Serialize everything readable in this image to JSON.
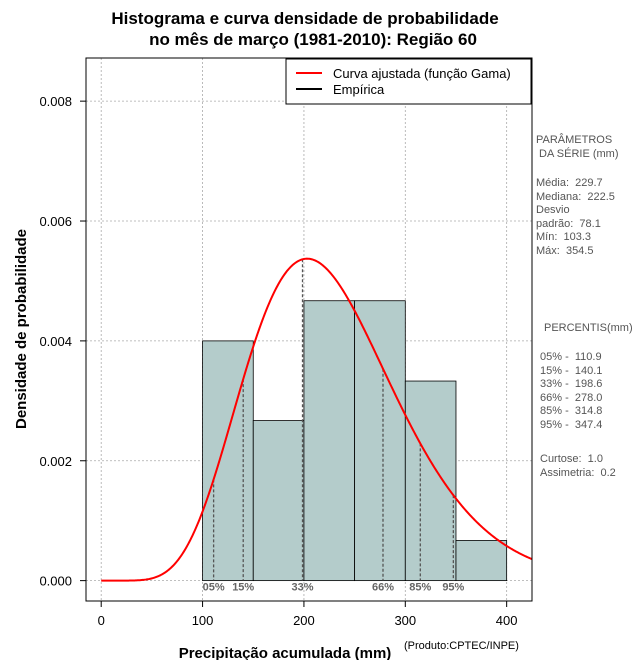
{
  "chart_data": {
    "type": "bar",
    "title": [
      "Histograma e curva densidade de probabilidade",
      "no mês de março (1981-2010): Região 60"
    ],
    "xlabel": "Precipitação acumulada (mm)",
    "ylabel": "Densidade de probabilidade",
    "xlim": [
      -15,
      425
    ],
    "ylim": [
      -0.00034,
      0.00872
    ],
    "x_ticks": [
      0,
      100,
      200,
      300,
      400
    ],
    "y_ticks": [
      0.0,
      0.002,
      0.004,
      0.006,
      0.008
    ],
    "y_tick_labels": [
      "0.000",
      "0.002",
      "0.004",
      "0.006",
      "0.008"
    ],
    "grid": true,
    "bins": [
      {
        "x0": 100,
        "x1": 150,
        "density": 0.004
      },
      {
        "x0": 150,
        "x1": 200,
        "density": 0.00267
      },
      {
        "x0": 200,
        "x1": 250,
        "density": 0.00467
      },
      {
        "x0": 250,
        "x1": 300,
        "density": 0.00467
      },
      {
        "x0": 300,
        "x1": 350,
        "density": 0.00333
      },
      {
        "x0": 350,
        "x1": 400,
        "density": 0.00067
      }
    ],
    "gamma_curve": {
      "shape": 8.65,
      "scale": 26.56
    },
    "percentile_lines": [
      {
        "label": "05%",
        "x": 110.9
      },
      {
        "label": "15%",
        "x": 140.1
      },
      {
        "label": "33%",
        "x": 198.6
      },
      {
        "label": "66%",
        "x": 278.0
      },
      {
        "label": "85%",
        "x": 314.8
      },
      {
        "label": "95%",
        "x": 347.4
      }
    ],
    "legend": {
      "position": "top-right",
      "entries": [
        {
          "label": "Curva ajustada (função Gama)",
          "color": "#ff0000"
        },
        {
          "label": "Empírica",
          "color": "#000000"
        }
      ]
    },
    "colors": {
      "bar_fill": "#b4cccb",
      "curve": "#ff0000",
      "grid": "#aaaaaa"
    }
  },
  "parametros": {
    "title": "PARÂMETROS\n DA SÉRIE (mm)",
    "values": "Média:  229.7\nMediana:  222.5\nDesvio\npadrão:  78.1\nMín:  103.3\nMáx:  354.5"
  },
  "percentis": {
    "title": "PERCENTIS(mm)",
    "values": "05% -  110.9\n15% -  140.1\n33% -  198.6\n66% -  278.0\n85% -  314.8\n95% -  347.4",
    "stats": "Curtose:  1.0\nAssimetria:  0.2"
  },
  "produto": "(Produto:CPTEC/INPE)"
}
